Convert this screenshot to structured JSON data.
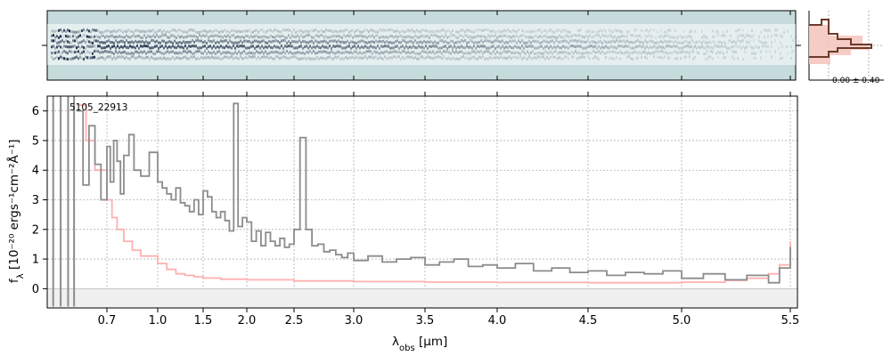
{
  "chart_data": {
    "type": "line",
    "annotation": "5105_22913",
    "xlabel_main": "λ",
    "xlabel_sub": "obs",
    "xlabel_unit": " [μm]",
    "ylabel": "f",
    "ylabel_sub": "λ",
    "ylabel_unit": " [10⁻²⁰ ergs⁻¹cm⁻²Å⁻¹]",
    "xlim": [
      0.5,
      5.55
    ],
    "ylim": [
      -0.65,
      6.5
    ],
    "x_scale": "nonlinear (dispersion-sampled)",
    "x_ticks": [
      0.7,
      1.0,
      1.5,
      2.0,
      2.5,
      3.0,
      3.5,
      4.0,
      4.5,
      5.0,
      5.5
    ],
    "x_tick_labels": [
      "0.7",
      "1.0",
      "1.5",
      "2.0",
      "2.5",
      "3.0",
      "3.5",
      "4.0",
      "4.5",
      "5.0",
      "5.5"
    ],
    "y_ticks": [
      0,
      1,
      2,
      3,
      4,
      5,
      6
    ],
    "y_tick_labels": [
      "0",
      "1",
      "2",
      "3",
      "4",
      "5",
      "6"
    ],
    "grid": true,
    "series": [
      {
        "role": "flux",
        "color": "#8c8c8c",
        "x": [
          0.6,
          0.62,
          0.64,
          0.66,
          0.68,
          0.7,
          0.72,
          0.74,
          0.76,
          0.78,
          0.8,
          0.83,
          0.86,
          0.9,
          0.95,
          1.0,
          1.05,
          1.1,
          1.15,
          1.2,
          1.25,
          1.3,
          1.35,
          1.4,
          1.45,
          1.5,
          1.55,
          1.6,
          1.65,
          1.7,
          1.75,
          1.8,
          1.85,
          1.9,
          1.95,
          2.0,
          2.05,
          2.1,
          2.15,
          2.2,
          2.25,
          2.3,
          2.35,
          2.4,
          2.45,
          2.5,
          2.55,
          2.6,
          2.65,
          2.7,
          2.75,
          2.8,
          2.85,
          2.9,
          2.95,
          3.0,
          3.1,
          3.2,
          3.3,
          3.4,
          3.5,
          3.6,
          3.7,
          3.8,
          3.9,
          4.0,
          4.1,
          4.2,
          4.3,
          4.4,
          4.5,
          4.6,
          4.7,
          4.8,
          4.9,
          5.0,
          5.1,
          5.2,
          5.3,
          5.4,
          5.45,
          5.5
        ],
        "y": [
          6.0,
          3.5,
          5.5,
          4.2,
          3.0,
          4.8,
          3.6,
          5.0,
          4.3,
          3.2,
          4.5,
          5.2,
          4.0,
          3.8,
          4.6,
          3.6,
          3.4,
          3.2,
          3.0,
          3.4,
          2.9,
          2.8,
          2.6,
          3.0,
          2.5,
          3.3,
          3.1,
          2.6,
          2.4,
          2.6,
          2.3,
          1.95,
          6.25,
          2.1,
          2.4,
          2.25,
          1.6,
          1.95,
          1.45,
          1.9,
          1.6,
          1.45,
          1.7,
          1.4,
          1.5,
          2.0,
          5.1,
          2.0,
          1.45,
          1.5,
          1.25,
          1.3,
          1.15,
          1.05,
          1.2,
          0.95,
          1.1,
          0.9,
          1.0,
          1.05,
          0.8,
          0.9,
          1.0,
          0.75,
          0.8,
          0.7,
          0.85,
          0.6,
          0.7,
          0.55,
          0.6,
          0.45,
          0.55,
          0.5,
          0.6,
          0.35,
          0.5,
          0.3,
          0.45,
          0.2,
          0.7,
          1.4
        ]
      },
      {
        "role": "error",
        "color": "#ffb0b0",
        "x": [
          0.6,
          0.63,
          0.66,
          0.7,
          0.73,
          0.76,
          0.8,
          0.85,
          0.9,
          1.0,
          1.1,
          1.2,
          1.3,
          1.4,
          1.5,
          1.7,
          2.0,
          2.5,
          3.0,
          3.5,
          4.0,
          4.5,
          5.0,
          5.2,
          5.3,
          5.4,
          5.45,
          5.5
        ],
        "y": [
          6.2,
          5.0,
          4.0,
          3.0,
          2.4,
          2.0,
          1.6,
          1.3,
          1.1,
          0.85,
          0.65,
          0.5,
          0.45,
          0.4,
          0.36,
          0.32,
          0.3,
          0.26,
          0.24,
          0.22,
          0.21,
          0.2,
          0.22,
          0.28,
          0.35,
          0.5,
          0.8,
          1.6
        ]
      }
    ]
  },
  "inset": {
    "label": "0.00 ± 0.40",
    "colors": {
      "step": "#6b3b2a",
      "fill": "#f5c6c0"
    }
  },
  "colors": {
    "spec2d_bg": "#c6dbdb",
    "spec2d_dark": "#1a2a44",
    "grid": "#b0b0b0",
    "zero_band": "#f0f0f0"
  }
}
